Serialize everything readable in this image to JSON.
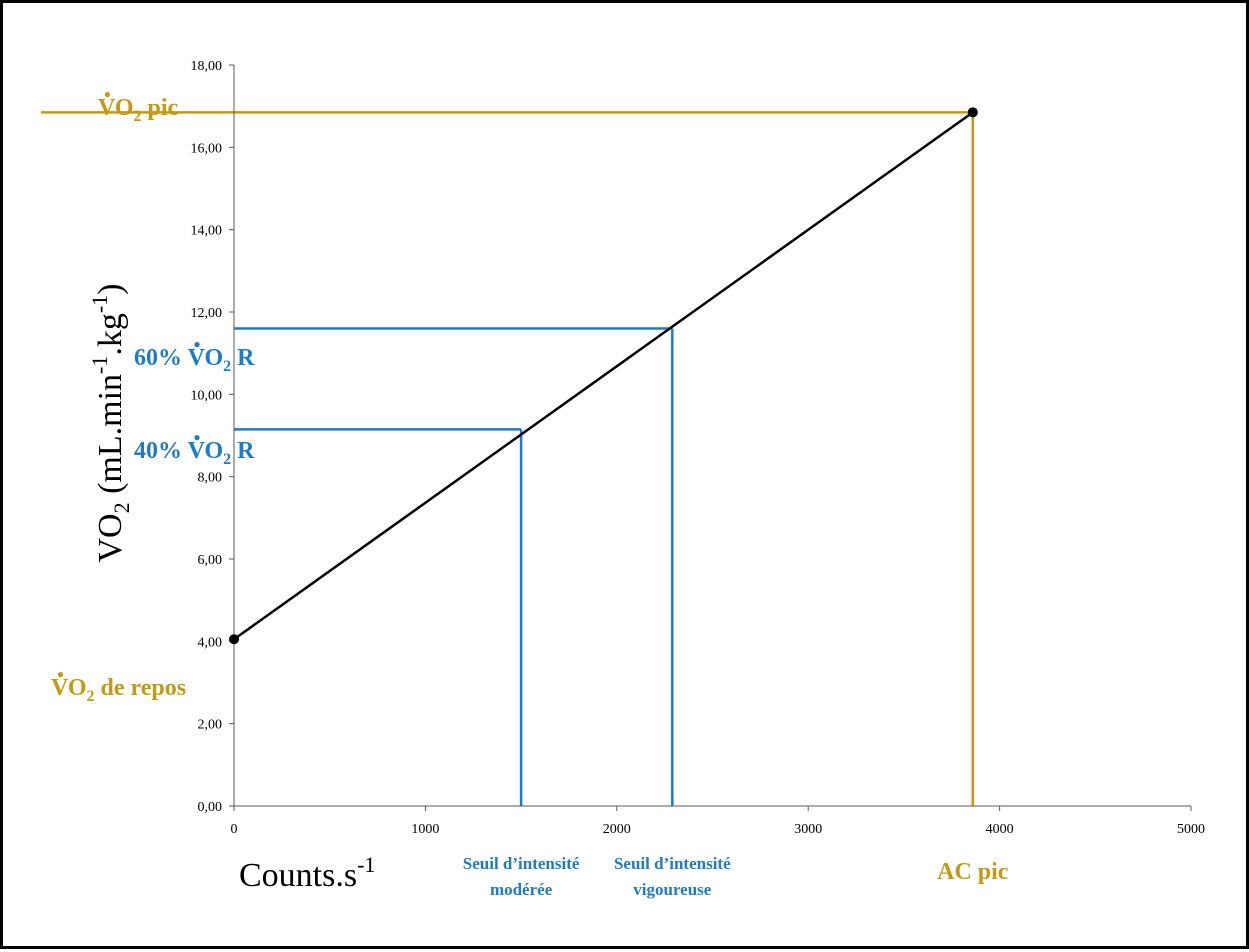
{
  "chart_data": {
    "type": "line",
    "xlim": [
      0,
      5000
    ],
    "ylim": [
      0,
      18
    ],
    "x_ticks": [
      0,
      1000,
      2000,
      3000,
      4000,
      5000
    ],
    "x_tick_labels": [
      "0",
      "1000",
      "2000",
      "3000",
      "4000",
      "5000"
    ],
    "y_ticks": [
      0,
      2,
      4,
      6,
      8,
      10,
      12,
      14,
      16,
      18
    ],
    "y_tick_labels": [
      "0,00",
      "2,00",
      "4,00",
      "6,00",
      "8,00",
      "10,00",
      "12,00",
      "14,00",
      "16,00",
      "18,00"
    ],
    "xlabel": {
      "base": "Counts.s",
      "sup": "-1"
    },
    "ylabel": {
      "v": "VO",
      "sub": "2",
      "rest1": " (mL.min",
      "sup1": "-1",
      "rest2": ".kg",
      "sup2": "-1",
      "rest3": ")"
    },
    "series": [
      {
        "points": [
          {
            "x": 0,
            "y": 4.05
          },
          {
            "x": 3860,
            "y": 16.85
          }
        ],
        "color": "#000000"
      }
    ],
    "annotations": [
      {
        "id": "vo2-pic",
        "y": 16.85,
        "x": 3860,
        "color": "#C49A12",
        "label": {
          "pre": "",
          "v": "V",
          "o": "O",
          "sub": "2",
          "post": " pic"
        },
        "x_label": "AC pic"
      },
      {
        "id": "vo2r-60",
        "y": 11.6,
        "x": 2290,
        "color": "#1F7BC4",
        "label": {
          "pre": "60% ",
          "v": "V",
          "o": "O",
          "sub": "2",
          "post": " R"
        },
        "x_label_lines": [
          "Seuil d’intensité",
          "vigoureuse"
        ]
      },
      {
        "id": "vo2r-40",
        "y": 9.15,
        "x": 1500,
        "color": "#1F7BC4",
        "label": {
          "pre": "40% ",
          "v": "V",
          "o": "O",
          "sub": "2",
          "post": " R"
        },
        "x_label_lines": [
          "Seuil d’intensité",
          "modérée"
        ]
      },
      {
        "id": "vo2-repos",
        "y": 4.05,
        "color": "#C49A12",
        "label": {
          "pre": "",
          "v": "V",
          "o": "O",
          "sub": "2",
          "post": " de repos"
        }
      }
    ],
    "colors": {
      "gold": "#C49A12",
      "blue": "#1F7BC4",
      "line": "#000000",
      "axis": "#595959"
    }
  }
}
